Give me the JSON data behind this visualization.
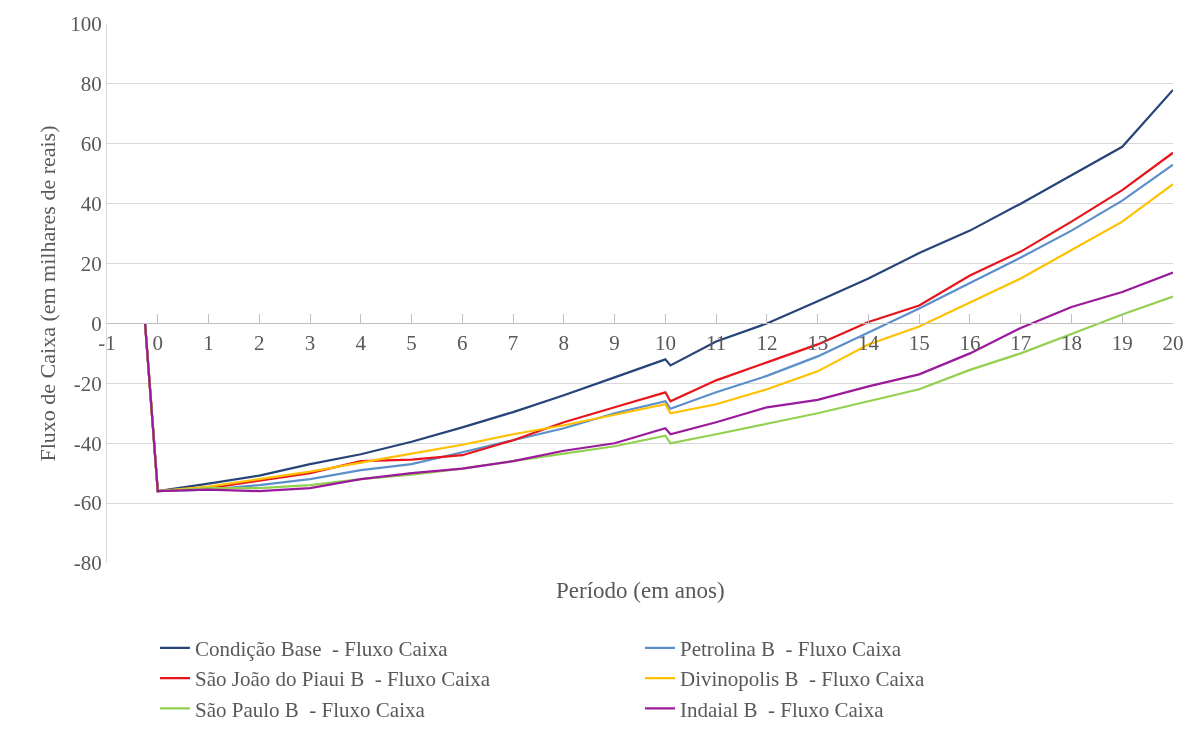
{
  "chart_data": {
    "type": "line",
    "xlabel": "Período (em anos)",
    "ylabel": "Fluxo de Caixa (em milhares de reais)",
    "x": [
      -0.25,
      0,
      1,
      2,
      3,
      4,
      5,
      6,
      7,
      8,
      9,
      10,
      10.1,
      11,
      12,
      13,
      14,
      15,
      16,
      17,
      18,
      19,
      20
    ],
    "series": [
      {
        "name": "Condição Base  - Fluxo Caixa",
        "color": "#264478",
        "values": [
          0,
          -56,
          -53.5,
          -50.8,
          -47,
          -43.7,
          -39.5,
          -34.7,
          -29.6,
          -24,
          -18,
          -12,
          -14,
          -6,
          0,
          7.4,
          15,
          23.5,
          31,
          40,
          49.5,
          59,
          78
        ]
      },
      {
        "name": "Petrolina B  - Fluxo Caixa",
        "color": "#5b8fc9",
        "values": [
          0,
          -56,
          -55.5,
          -54,
          -52,
          -49,
          -47,
          -43,
          -39,
          -35,
          -30,
          -26,
          -28.5,
          -23,
          -17.5,
          -11,
          -3,
          5,
          13.5,
          22,
          31,
          41,
          53
        ]
      },
      {
        "name": "São João do Piaui B  - Fluxo Caixa",
        "color": "#e8141b",
        "values": [
          0,
          -56,
          -55,
          -52.5,
          -50,
          -46,
          -45.5,
          -44,
          -39,
          -33,
          -28,
          -23,
          -26,
          -19,
          -13,
          -7,
          0.5,
          6,
          16,
          24,
          34,
          44.5,
          57
        ]
      },
      {
        "name": "Divinopolis B  - Fluxo Caixa",
        "color": "#ffc000",
        "values": [
          0,
          -56,
          -54.5,
          -52,
          -49.5,
          -46.5,
          -43.5,
          -40.5,
          -37,
          -34,
          -30.5,
          -27,
          -30,
          -27,
          -22,
          -16,
          -7,
          -1,
          7,
          15,
          24.5,
          34,
          46.5
        ]
      },
      {
        "name": "São Paulo B  - Fluxo Caixa",
        "color": "#92d050",
        "values": [
          0,
          -56,
          -55,
          -55,
          -54,
          -52,
          -50.5,
          -48.5,
          -46,
          -43.5,
          -41,
          -37.5,
          -40,
          -37,
          -33.5,
          -30,
          -26,
          -22,
          -15.5,
          -10,
          -3.5,
          3,
          9
        ]
      },
      {
        "name": "Indaial B  - Fluxo Caixa",
        "color": "#9b1a9b",
        "values": [
          0,
          -56,
          -55.5,
          -56,
          -55,
          -52,
          -50,
          -48.5,
          -46,
          -42.5,
          -40,
          -35,
          -37,
          -33,
          -28,
          -25.5,
          -21,
          -17,
          -10,
          -1.5,
          5.5,
          10.5,
          17
        ]
      }
    ],
    "xlim": [
      -1,
      20
    ],
    "xticks": [
      -1,
      0,
      1,
      2,
      3,
      4,
      5,
      6,
      7,
      8,
      9,
      10,
      11,
      12,
      13,
      14,
      15,
      16,
      17,
      18,
      19,
      20
    ],
    "ylim": [
      -80,
      100
    ],
    "yticks": [
      -80,
      -60,
      -40,
      -20,
      0,
      20,
      40,
      60,
      80,
      100
    ],
    "grid": "y",
    "legend": "bottom",
    "line_style": "solid",
    "marker": "none"
  }
}
